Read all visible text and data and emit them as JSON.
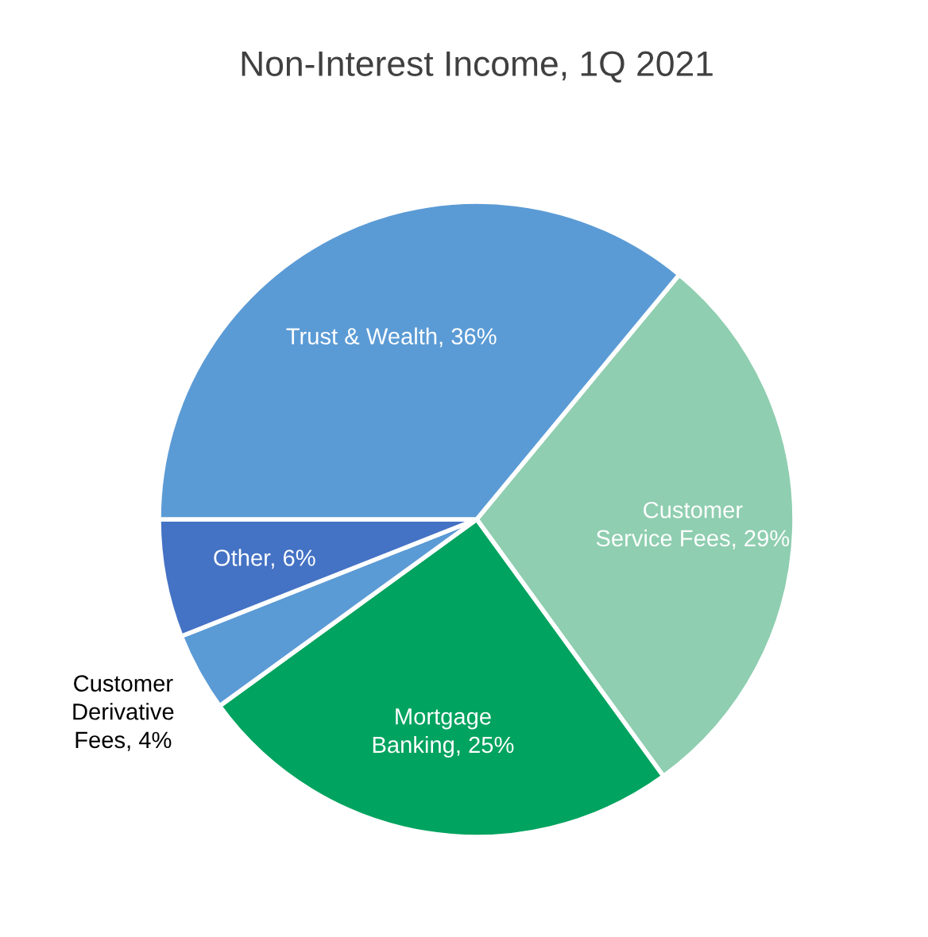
{
  "chart_data": {
    "type": "pie",
    "title": "Non-Interest Income, 1Q 2021",
    "categories": [
      "Customer\nService Fees",
      "Mortgage\nBanking",
      "Customer\nDerivative\nFees",
      "Other",
      "Trust & Wealth"
    ],
    "values": [
      29,
      25,
      4,
      6,
      36
    ],
    "value_labels": [
      "29%",
      "25%",
      "4%",
      "6%",
      "36%"
    ],
    "colors": [
      "#8fceb0",
      "#00a35f",
      "#5b9bd5",
      "#4472c4",
      "#5b9bd5"
    ]
  }
}
